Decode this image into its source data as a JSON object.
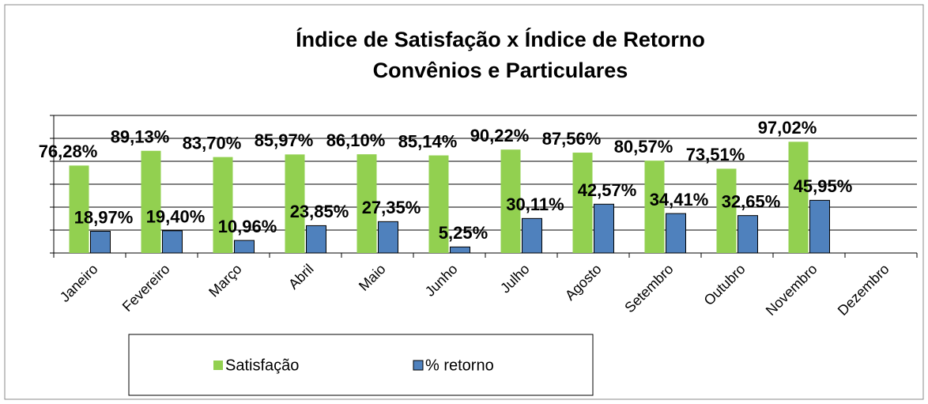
{
  "chart_data": {
    "type": "bar",
    "title": "Índice de Satisfação x Índice de Retorno",
    "subtitle": "Convênios e Particulares",
    "categories": [
      "Janeiro",
      "Fevereiro",
      "Março",
      "Abril",
      "Maio",
      "Junho",
      "Julho",
      "Agosto",
      "Setembro",
      "Outubro",
      "Novembro",
      "Dezembro"
    ],
    "series": [
      {
        "name": "Satisfação",
        "color": "#92d050",
        "values": [
          76.28,
          89.13,
          83.7,
          85.97,
          86.1,
          85.14,
          90.22,
          87.56,
          80.57,
          73.51,
          97.02,
          null
        ],
        "value_labels": [
          "76,28%",
          "89,13%",
          "83,70%",
          "85,97%",
          "86,10%",
          "85,14%",
          "90,22%",
          "87,56%",
          "80,57%",
          "73,51%",
          "97,02%",
          null
        ]
      },
      {
        "name": "% retorno",
        "color": "#4f81bd",
        "values": [
          18.97,
          19.4,
          10.96,
          23.85,
          27.35,
          5.25,
          30.11,
          42.57,
          34.41,
          32.65,
          45.95,
          null
        ],
        "value_labels": [
          "18,97%",
          "19,40%",
          "10,96%",
          "23,85%",
          "27,35%",
          "5,25%",
          "30,11%",
          "42,57%",
          "34,41%",
          "32,65%",
          "45,95%",
          null
        ]
      }
    ],
    "ylim": [
      0,
      120
    ],
    "yticks": [
      0,
      20,
      40,
      60,
      80,
      100,
      120
    ],
    "grid": true,
    "legend": "bottom-left"
  }
}
